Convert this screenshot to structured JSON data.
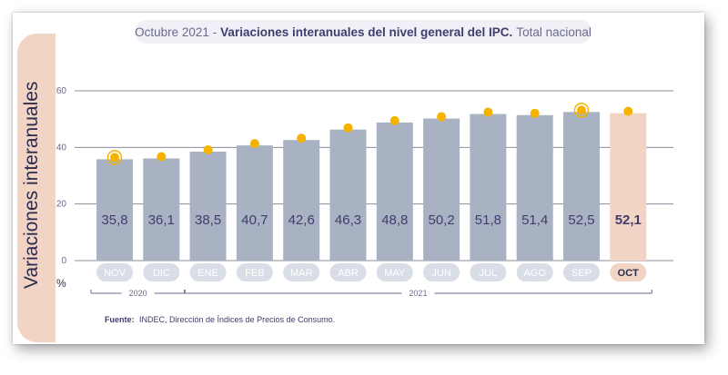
{
  "chart_data": {
    "type": "bar",
    "title": {
      "prefix": "Octubre 2021 -",
      "main": "Variaciones interanuales del nivel general del IPC.",
      "suffix": "Total nacional"
    },
    "ylabel": "Variaciones interanuales",
    "yunit": "%",
    "ylim": [
      0,
      60
    ],
    "yticks": [
      "0",
      "20",
      "40",
      "60"
    ],
    "ytick_values": [
      0,
      20,
      40,
      60
    ],
    "grid": true,
    "categories": [
      "NOV",
      "DIC",
      "ENE",
      "FEB",
      "MAR",
      "ABR",
      "MAY",
      "JUN",
      "JUL",
      "AGO",
      "SEP",
      "OCT"
    ],
    "values": [
      35.8,
      36.1,
      38.5,
      40.7,
      42.6,
      46.3,
      48.8,
      50.2,
      51.8,
      51.4,
      52.5,
      52.1
    ],
    "value_labels": [
      "35,8",
      "36,1",
      "38,5",
      "40,7",
      "42,6",
      "46,3",
      "48,8",
      "50,2",
      "51,8",
      "51,4",
      "52,5",
      "52,1"
    ],
    "highlighted_category": "OCT",
    "highlighted_markers": [
      "NOV",
      "SEP"
    ],
    "year_groups": [
      {
        "label": "2020",
        "from": 0,
        "to": 1
      },
      {
        "label": "2021",
        "from": 2,
        "to": 11
      }
    ],
    "colors": {
      "bar": "#a9b2c3",
      "bar_highlight": "#f1d4c4",
      "category_pill": "#d8dde6",
      "category_pill_highlight": "#f1d4c4",
      "value_text": "#3f3d6e",
      "category_text": "#ffffff",
      "category_text_highlight": "#2c2b4e",
      "marker": "#f5b300",
      "grid": "#8c8c9a",
      "year_line": "#6b6a8e"
    }
  },
  "source": {
    "label": "Fuente:",
    "text": "INDEC, Dirección de Índices de Precios de Consumo."
  }
}
